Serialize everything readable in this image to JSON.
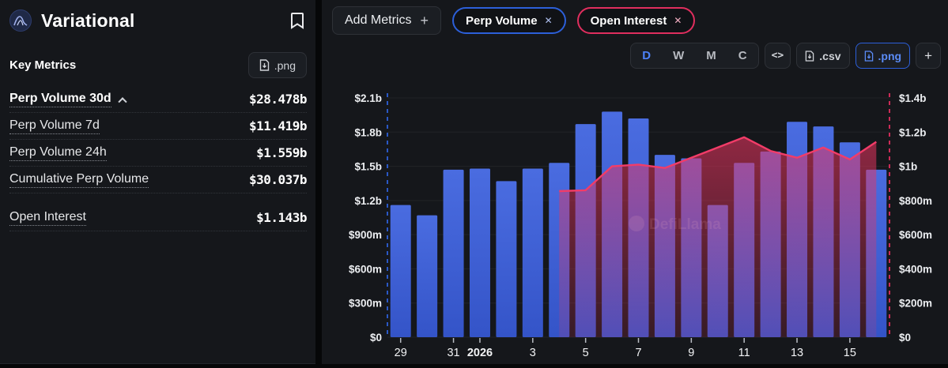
{
  "colors": {
    "accent_blue": "#4d82f8",
    "pill_blue": "#2c5fd9",
    "pill_pink": "#e02e5e",
    "bar_top": "#4a6ce0",
    "bar_bottom": "#3454c8",
    "oi_line": "#f23c68",
    "oi_fill": "#e8345f"
  },
  "left_panel": {
    "title": "Variational",
    "section_title": "Key Metrics",
    "export_png": ".png",
    "metrics": [
      {
        "label": "Perp Volume 30d",
        "value": "$28.478b",
        "expanded": true
      },
      {
        "label": "Perp Volume 7d",
        "value": "$11.419b"
      },
      {
        "label": "Perp Volume 24h",
        "value": "$1.559b"
      },
      {
        "label": "Cumulative Perp Volume",
        "value": "$30.037b"
      },
      {
        "label": "Open Interest",
        "value": "$1.143b",
        "gap_before": true
      }
    ]
  },
  "chart_header": {
    "add_metrics": "Add Metrics",
    "add_metrics_plus": "+",
    "pills": [
      {
        "label": "Perp Volume",
        "close": "✕"
      },
      {
        "label": "Open Interest",
        "close": "✕"
      }
    ],
    "intervals": [
      "D",
      "W",
      "M",
      "C"
    ],
    "active_interval": "D",
    "embed": "<>",
    "csv": ".csv",
    "png": ".png",
    "more": "+"
  },
  "watermark": "DefiLlama",
  "chart_data": {
    "type": "bar",
    "subtype": "combo-bar-line-area",
    "x_dates": [
      "Dec 29",
      "Dec 30",
      "Dec 31",
      "Jan 1 2026",
      "Jan 2",
      "Jan 3",
      "Jan 4",
      "Jan 5",
      "Jan 6",
      "Jan 7",
      "Jan 8",
      "Jan 9",
      "Jan 10",
      "Jan 11",
      "Jan 12",
      "Jan 13",
      "Jan 14",
      "Jan 15",
      "Jan 16"
    ],
    "x_ticks": [
      {
        "index": 0,
        "label": "29"
      },
      {
        "index": 2,
        "label": "31"
      },
      {
        "index": 3,
        "label": "2026",
        "bold": true
      },
      {
        "index": 5,
        "label": "3"
      },
      {
        "index": 7,
        "label": "5"
      },
      {
        "index": 9,
        "label": "7"
      },
      {
        "index": 11,
        "label": "9"
      },
      {
        "index": 13,
        "label": "11"
      },
      {
        "index": 15,
        "label": "13"
      },
      {
        "index": 17,
        "label": "15"
      }
    ],
    "series": [
      {
        "name": "Perp Volume",
        "type": "bar",
        "axis": "left",
        "unit": "USD billions",
        "values": [
          1.16,
          1.07,
          1.47,
          1.48,
          1.37,
          1.48,
          1.53,
          1.87,
          1.98,
          1.92,
          1.6,
          1.57,
          1.16,
          1.53,
          1.63,
          1.89,
          1.85,
          1.71,
          1.47
        ]
      },
      {
        "name": "Open Interest",
        "type": "line-area",
        "axis": "right",
        "unit": "USD billions",
        "start_index": 6,
        "values": [
          0.855,
          0.86,
          1.0,
          1.01,
          0.99,
          1.05,
          1.11,
          1.17,
          1.09,
          1.05,
          1.11,
          1.04,
          1.143
        ]
      }
    ],
    "left_axis": {
      "ticks": [
        "$0",
        "$300m",
        "$600m",
        "$900m",
        "$1.2b",
        "$1.5b",
        "$1.8b",
        "$2.1b"
      ],
      "max": 2.1
    },
    "right_axis": {
      "ticks": [
        "$0",
        "$200m",
        "$400m",
        "$600m",
        "$800m",
        "$1b",
        "$1.2b",
        "$1.4b"
      ],
      "max": 1.4
    },
    "grid": true,
    "legend": "none"
  }
}
